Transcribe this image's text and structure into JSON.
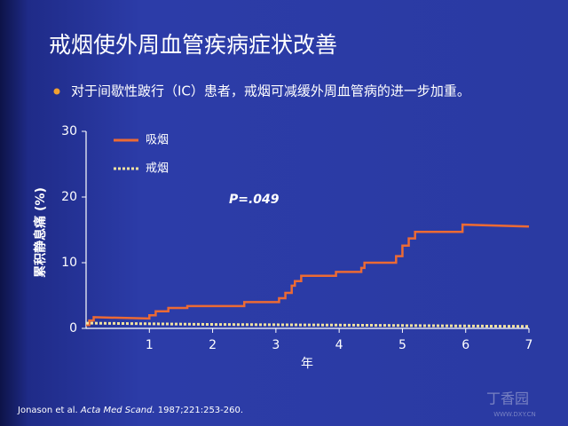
{
  "title": "戒烟使外周血管疾病症状改善",
  "bullet": "对于间歇性跛行（IC）患者，戒烟可减缓外周血管病的进一步加重。",
  "chart_data": {
    "type": "line",
    "y_label": "累积静息痛 (%)",
    "x_label": "年",
    "annotation": "P=.049",
    "xlim": [
      0,
      7
    ],
    "xticks": [
      1,
      2,
      3,
      4,
      5,
      6,
      7
    ],
    "ylim": [
      0,
      30
    ],
    "yticks": [
      0,
      10,
      20,
      30
    ],
    "grid": false,
    "legend": "top-left",
    "series": [
      {
        "name": "吸烟",
        "color": "#ec6a34",
        "style": "solid",
        "x": [
          0,
          0.05,
          0.05,
          0.12,
          0.12,
          1.0,
          1.0,
          1.1,
          1.1,
          1.3,
          1.3,
          1.6,
          1.6,
          2.5,
          2.5,
          3.05,
          3.05,
          3.15,
          3.15,
          3.25,
          3.25,
          3.3,
          3.3,
          3.4,
          3.4,
          3.95,
          3.95,
          4.35,
          4.35,
          4.4,
          4.4,
          4.9,
          4.9,
          5.0,
          5.0,
          5.1,
          5.1,
          5.2,
          5.2,
          5.95,
          5.95,
          7.0
        ],
        "values": [
          0.5,
          0.5,
          1.2,
          1.2,
          1.7,
          1.5,
          2.0,
          2.0,
          2.6,
          2.6,
          3.1,
          3.1,
          3.4,
          3.4,
          4.0,
          4.0,
          4.6,
          4.6,
          5.4,
          5.4,
          6.5,
          6.5,
          7.2,
          7.2,
          8.0,
          8.0,
          8.6,
          8.6,
          9.2,
          9.2,
          10.0,
          10.0,
          11.0,
          11.0,
          12.6,
          12.6,
          13.7,
          13.7,
          14.7,
          14.7,
          15.8,
          15.5
        ]
      },
      {
        "name": "戒烟",
        "color": "#f3e3a0",
        "style": "dotted",
        "x": [
          0,
          2,
          4,
          7
        ],
        "values": [
          0.8,
          0.6,
          0.5,
          0.3
        ]
      }
    ]
  },
  "footnote": [
    "Jonason et al. ",
    "Acta Med Scand.",
    " 1987;221:253-260."
  ],
  "watermark": [
    "丁香园",
    "WWW.DXY.CN"
  ]
}
